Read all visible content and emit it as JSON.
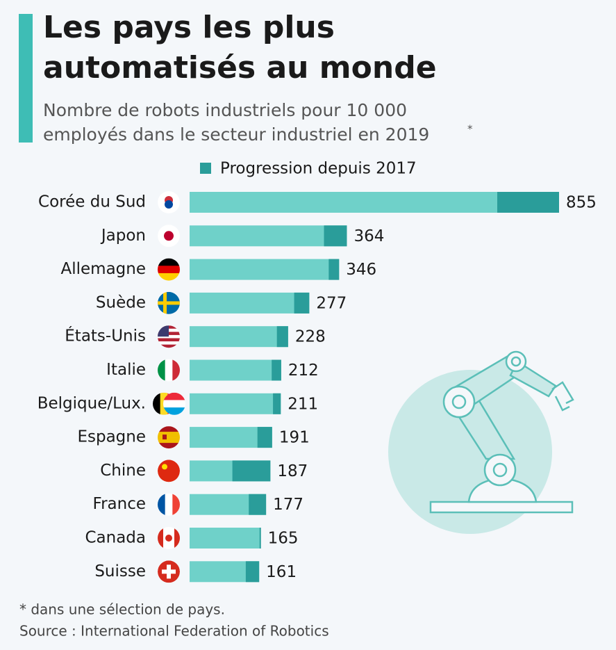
{
  "chart_data": {
    "type": "bar",
    "title": [
      "Les pays les plus",
      "automatisés au monde"
    ],
    "subtitle": [
      "Nombre de robots industriels pour 10 000",
      "employés dans le secteur industriel en 2019"
    ],
    "subtitle_mark": "*",
    "categories": [
      "Corée du Sud",
      "Japon",
      "Allemagne",
      "Suède",
      "États-Unis",
      "Italie",
      "Belgique/Lux.",
      "Espagne",
      "Chine",
      "France",
      "Canada",
      "Suisse"
    ],
    "values": [
      855,
      364,
      346,
      277,
      228,
      212,
      211,
      191,
      187,
      177,
      165,
      161
    ],
    "color": "#6fd1c9",
    "progression": {
      "name": "Progression depuis 2017",
      "color": "#2a9d9a",
      "values": [
        143,
        53,
        24,
        35,
        26,
        22,
        18,
        34,
        88,
        40,
        3,
        31
      ]
    },
    "note": "* dans une sélection de pays.",
    "source": "Source : International Federation of Robotics"
  }
}
